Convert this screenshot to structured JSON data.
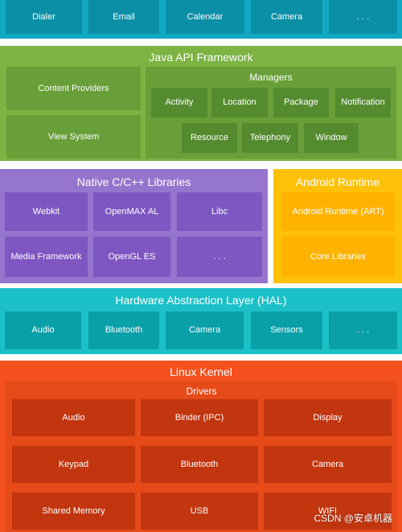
{
  "apps": {
    "items": [
      "Dialer",
      "Email",
      "Calendar",
      "Camera",
      ". . ."
    ]
  },
  "java_api": {
    "title": "Java API Framework",
    "content_providers": "Content Providers",
    "view_system": "View System",
    "managers": {
      "title": "Managers",
      "row1": [
        "Activity",
        "Location",
        "Package",
        "Notification"
      ],
      "row2": [
        "Resource",
        "Telephony",
        "Window"
      ]
    }
  },
  "native": {
    "title": "Native C/C++ Libraries",
    "row1": [
      "Webkit",
      "OpenMAX AL",
      "Libc"
    ],
    "row2": [
      "Media Framework",
      "OpenGL ES",
      ". . ."
    ]
  },
  "runtime": {
    "title": "Android Runtime",
    "items": [
      "Android Runtime (ART)",
      "Core Libraries"
    ]
  },
  "hal": {
    "title": "Hardware Abstraction Layer (HAL)",
    "items": [
      "Audio",
      "Bluetooth",
      "Camera",
      "Sensors",
      ". . ."
    ]
  },
  "kernel": {
    "title": "Linux Kernel",
    "drivers": {
      "title": "Drivers",
      "row1": [
        "Audio",
        "Binder (IPC)",
        "Display"
      ],
      "row2": [
        "Keypad",
        "Bluetooth",
        "Camera"
      ],
      "row3": [
        "Shared Memory",
        "USB",
        "WIFI"
      ]
    }
  },
  "watermark": "CSDN @安卓机器",
  "colors": {
    "app_bg": "#11a8c4",
    "app_box": "#0b8fa6",
    "java_bg": "#7cb342",
    "java_box": "#689f38",
    "manager_box": "#558b2f",
    "native_bg": "#9575cd",
    "native_box": "#7e57c2",
    "runtime_bg": "#ffc107",
    "runtime_box": "#ffb300",
    "hal_bg": "#1cc1c7",
    "hal_box": "#0aa0a8",
    "kernel_bg": "#f4511e",
    "drivers_bg": "#e64a19",
    "drivers_box": "#c1350f"
  }
}
